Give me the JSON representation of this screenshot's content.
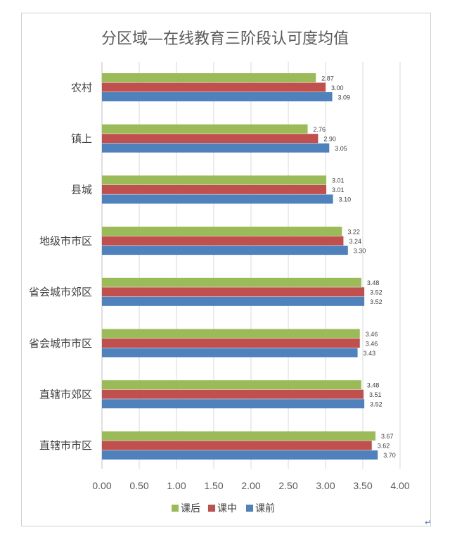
{
  "chart_data": {
    "type": "bar",
    "orientation": "horizontal",
    "title": "分区域—在线教育三阶段认可度均值",
    "categories": [
      "农村",
      "镇上",
      "县城",
      "地级市市区",
      "省会城市郊区",
      "省会城市市区",
      "直辖市郊区",
      "直辖市市区"
    ],
    "series": [
      {
        "name": "课后",
        "color": "#9bbb59",
        "values": [
          2.87,
          2.76,
          3.01,
          3.22,
          3.48,
          3.46,
          3.48,
          3.67
        ]
      },
      {
        "name": "课中",
        "color": "#c0504d",
        "values": [
          3.0,
          2.9,
          3.01,
          3.24,
          3.52,
          3.46,
          3.51,
          3.62
        ]
      },
      {
        "name": "课前",
        "color": "#4f81bd",
        "values": [
          3.09,
          3.05,
          3.1,
          3.3,
          3.52,
          3.43,
          3.52,
          3.7
        ]
      }
    ],
    "xlim": [
      0,
      4
    ],
    "xticks": [
      "0.00",
      "0.50",
      "1.00",
      "1.50",
      "2.00",
      "2.50",
      "3.00",
      "3.50",
      "4.00"
    ],
    "grid": true,
    "legend_position": "bottom"
  },
  "page": {
    "return_mark": "↵"
  }
}
